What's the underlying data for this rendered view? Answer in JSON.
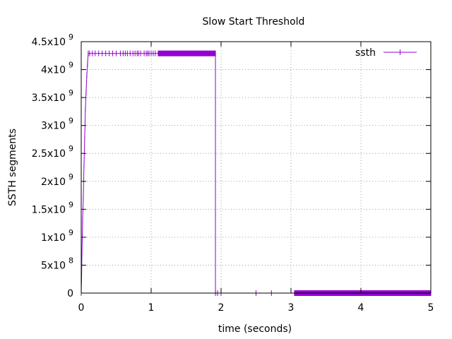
{
  "chart_data": {
    "type": "line",
    "title": "Slow Start Threshold",
    "xlabel": "time (seconds)",
    "ylabel": "SSTH segments",
    "xlim": [
      0,
      5
    ],
    "ylim": [
      0,
      4500000000
    ],
    "grid": true,
    "legend_position": "top-right",
    "x_ticks": [
      {
        "value": 0,
        "label": "0"
      },
      {
        "value": 1,
        "label": "1"
      },
      {
        "value": 2,
        "label": "2"
      },
      {
        "value": 3,
        "label": "3"
      },
      {
        "value": 4,
        "label": "4"
      },
      {
        "value": 5,
        "label": "5"
      }
    ],
    "y_ticks": [
      {
        "value": 0,
        "base": "0",
        "exp": ""
      },
      {
        "value": 500000000,
        "base": "5x10",
        "exp": "8"
      },
      {
        "value": 1000000000,
        "base": "1x10",
        "exp": "9"
      },
      {
        "value": 1500000000,
        "base": "1.5x10",
        "exp": "9"
      },
      {
        "value": 2000000000,
        "base": "2x10",
        "exp": "9"
      },
      {
        "value": 2500000000,
        "base": "2.5x10",
        "exp": "9"
      },
      {
        "value": 3000000000,
        "base": "3x10",
        "exp": "9"
      },
      {
        "value": 3500000000,
        "base": "3.5x10",
        "exp": "9"
      },
      {
        "value": 4000000000,
        "base": "4x10",
        "exp": "9"
      },
      {
        "value": 4500000000,
        "base": "4.5x10",
        "exp": "9"
      }
    ],
    "series": [
      {
        "name": "ssth",
        "color": "#9400d3",
        "points": [
          [
            0.0,
            0
          ],
          [
            0.005,
            250000000
          ],
          [
            0.01,
            700000000
          ],
          [
            0.02,
            1300000000
          ],
          [
            0.03,
            1700000000
          ],
          [
            0.04,
            2300000000
          ],
          [
            0.05,
            2800000000
          ],
          [
            0.06,
            3300000000
          ],
          [
            0.07,
            3600000000
          ],
          [
            0.08,
            3900000000
          ],
          [
            0.09,
            4100000000
          ],
          [
            0.1,
            4290000000
          ],
          [
            0.12,
            4290000000
          ],
          [
            0.16,
            4290000000
          ],
          [
            0.2,
            4290000000
          ],
          [
            0.25,
            4290000000
          ],
          [
            0.3,
            4290000000
          ],
          [
            0.35,
            4290000000
          ],
          [
            0.4,
            4290000000
          ],
          [
            0.45,
            4290000000
          ],
          [
            0.5,
            4290000000
          ],
          [
            0.56,
            4290000000
          ],
          [
            0.6,
            4290000000
          ],
          [
            0.63,
            4290000000
          ],
          [
            0.66,
            4290000000
          ],
          [
            0.7,
            4290000000
          ],
          [
            0.74,
            4290000000
          ],
          [
            0.77,
            4290000000
          ],
          [
            0.8,
            4290000000
          ],
          [
            0.82,
            4290000000
          ],
          [
            0.85,
            4290000000
          ],
          [
            0.9,
            4290000000
          ],
          [
            0.93,
            4290000000
          ],
          [
            0.95,
            4290000000
          ],
          [
            0.97,
            4290000000
          ],
          [
            1.0,
            4290000000
          ],
          [
            1.03,
            4290000000
          ],
          [
            1.06,
            4290000000
          ],
          [
            1.1,
            4290000000
          ],
          [
            1.13,
            4290000000
          ],
          [
            1.16,
            4290000000
          ],
          [
            1.2,
            4290000000
          ],
          [
            1.25,
            4290000000
          ],
          [
            1.3,
            4290000000
          ],
          [
            1.35,
            4290000000
          ],
          [
            1.4,
            4290000000
          ],
          [
            1.45,
            4290000000
          ],
          [
            1.5,
            4290000000
          ],
          [
            1.55,
            4290000000
          ],
          [
            1.6,
            4290000000
          ],
          [
            1.65,
            4290000000
          ],
          [
            1.7,
            4290000000
          ],
          [
            1.75,
            4290000000
          ],
          [
            1.8,
            4290000000
          ],
          [
            1.85,
            4290000000
          ],
          [
            1.9,
            4290000000
          ],
          [
            1.92,
            4290000000
          ],
          [
            1.92,
            0
          ],
          [
            1.95,
            0
          ],
          [
            2.0,
            0
          ],
          [
            2.5,
            0
          ],
          [
            2.72,
            0
          ],
          [
            3.05,
            0
          ],
          [
            3.2,
            0
          ],
          [
            3.4,
            0
          ],
          [
            3.6,
            0
          ],
          [
            3.8,
            0
          ],
          [
            4.0,
            0
          ],
          [
            4.2,
            0
          ],
          [
            4.4,
            0
          ],
          [
            4.6,
            0
          ],
          [
            4.8,
            0
          ],
          [
            5.0,
            0
          ]
        ],
        "dense_marker_ranges": [
          [
            1.1,
            1.92
          ],
          [
            3.05,
            5.0
          ]
        ]
      }
    ]
  }
}
